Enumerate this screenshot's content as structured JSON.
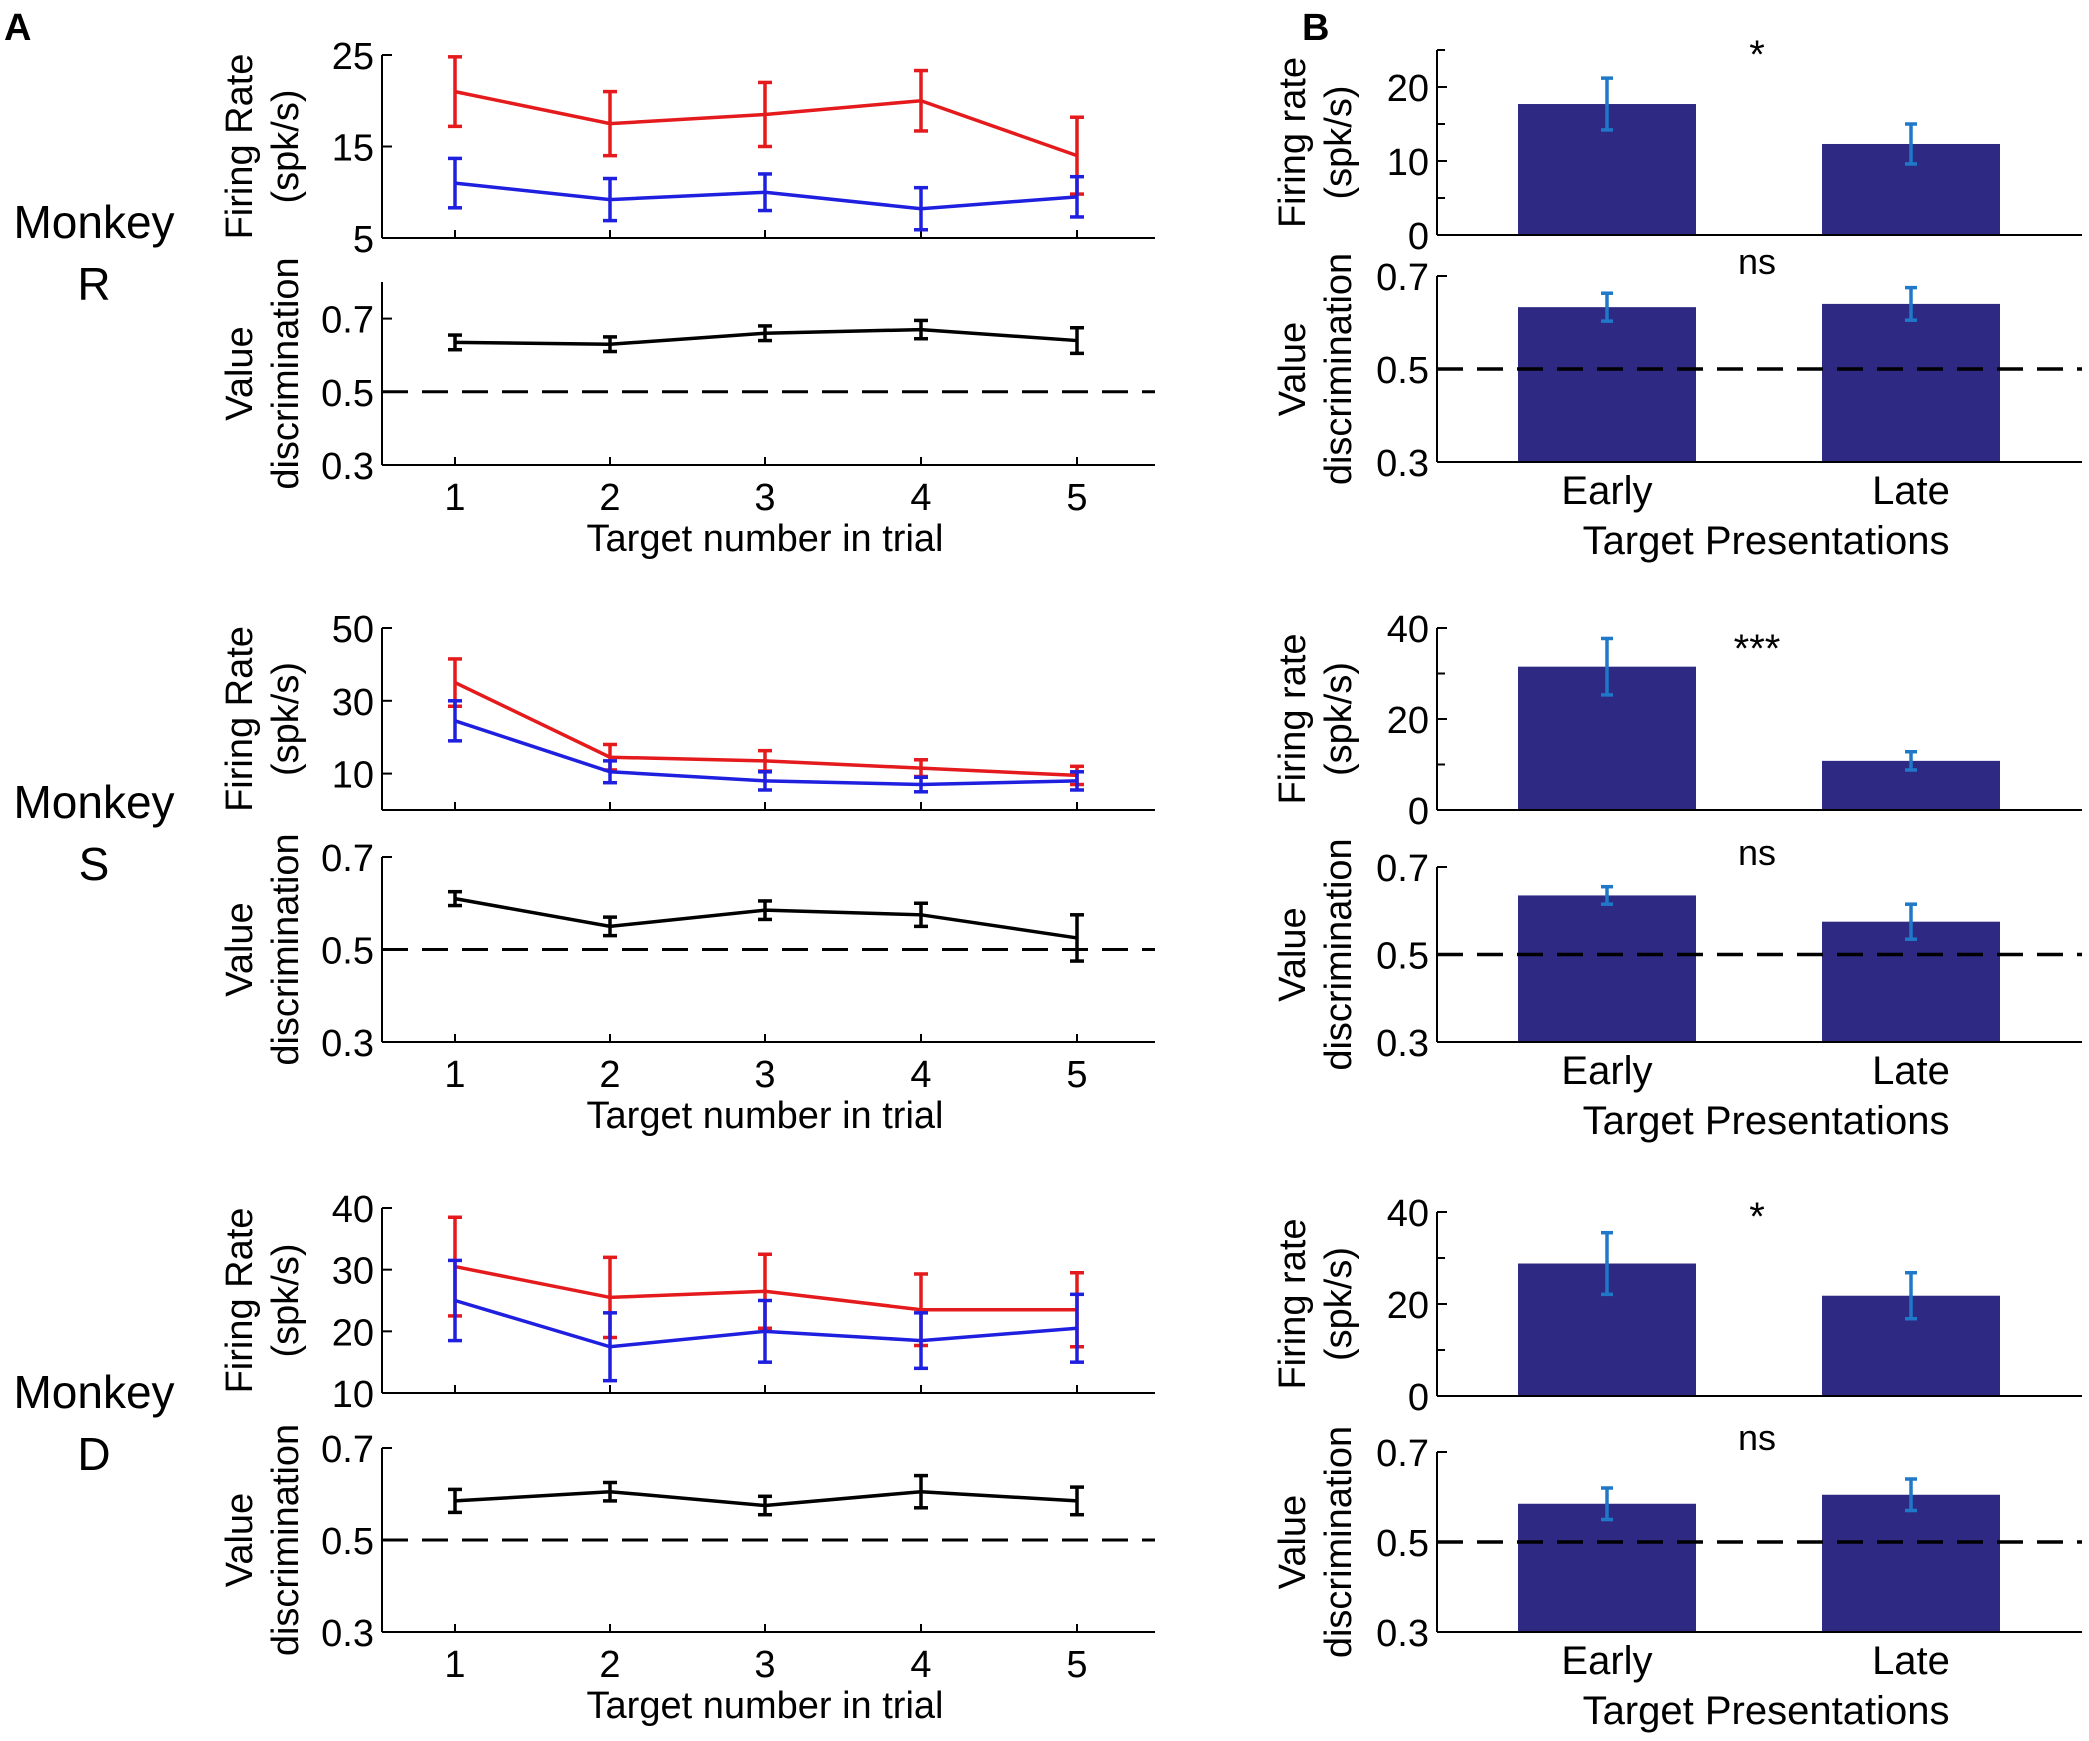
{
  "figure": {
    "panel_labels": [
      "A",
      "B"
    ],
    "monkeys": [
      {
        "label_line1": "Monkey",
        "label_line2": "R"
      },
      {
        "label_line1": "Monkey",
        "label_line2": "S"
      },
      {
        "label_line1": "Monkey",
        "label_line2": "D"
      }
    ],
    "common": {
      "fr_ylabel_a": [
        "Firing Rate",
        "(spk/s)"
      ],
      "fr_ylabel_b": [
        "Firing rate",
        "(spk/s)"
      ],
      "vd_ylabel": [
        "Value",
        "discrimination"
      ],
      "xlabel_a": "Target number in trial",
      "xlabel_b": "Target Presentations",
      "colors": {
        "red": "#e41a1c",
        "blue": "#1f1fe0",
        "black": "#000000",
        "bar": "#2e2a83",
        "bar_err": "#1f78c8"
      }
    }
  },
  "chart_data": [
    {
      "id": "R-A-fr",
      "type": "line",
      "monkey": "R",
      "panel": "A",
      "ylabel": "Firing Rate (spk/s)",
      "ylim": [
        5,
        25
      ],
      "yticks": [
        5,
        15,
        25
      ],
      "x": [
        1,
        2,
        3,
        4,
        5
      ],
      "series": [
        {
          "name": "red",
          "color": "#e41a1c",
          "values": [
            21,
            17.5,
            18.5,
            20,
            14
          ],
          "errors": [
            3.8,
            3.5,
            3.5,
            3.3,
            4.2
          ]
        },
        {
          "name": "blue",
          "color": "#1f1fe0",
          "values": [
            11,
            9.2,
            10,
            8.2,
            9.5
          ],
          "errors": [
            2.7,
            2.3,
            2.0,
            2.3,
            2.2
          ]
        }
      ]
    },
    {
      "id": "R-A-vd",
      "type": "line",
      "monkey": "R",
      "panel": "A",
      "ylabel": "Value discrimination",
      "ylim": [
        0.3,
        0.8
      ],
      "yticks": [
        0.3,
        0.5,
        0.7
      ],
      "xlabel": "Target number in trial",
      "x": [
        1,
        2,
        3,
        4,
        5
      ],
      "xticks": [
        "1",
        "2",
        "3",
        "4",
        "5"
      ],
      "series": [
        {
          "name": "black",
          "color": "#000000",
          "values": [
            0.635,
            0.63,
            0.66,
            0.67,
            0.64
          ],
          "errors": [
            0.02,
            0.02,
            0.02,
            0.025,
            0.035
          ]
        }
      ],
      "reference_line": 0.5
    },
    {
      "id": "R-B-fr",
      "type": "bar",
      "monkey": "R",
      "panel": "B",
      "ylabel": "Firing rate (spk/s)",
      "ylim": [
        0,
        25
      ],
      "yticks": [
        0,
        10,
        20
      ],
      "categories": [
        "Early",
        "Late"
      ],
      "values": [
        17.7,
        12.3
      ],
      "errors": [
        3.5,
        2.7
      ],
      "significance": "*"
    },
    {
      "id": "R-B-vd",
      "type": "bar",
      "monkey": "R",
      "panel": "B",
      "ylabel": "Value discrimination",
      "ylim": [
        0.3,
        0.7
      ],
      "yticks": [
        0.3,
        0.5,
        0.7
      ],
      "xlabel": "Target Presentations",
      "categories": [
        "Early",
        "Late"
      ],
      "values": [
        0.633,
        0.64
      ],
      "errors": [
        0.03,
        0.035
      ],
      "significance": "ns",
      "reference_line": 0.5
    },
    {
      "id": "S-A-fr",
      "type": "line",
      "monkey": "S",
      "panel": "A",
      "ylabel": "Firing Rate (spk/s)",
      "ylim": [
        0,
        50
      ],
      "yticks": [
        10,
        30,
        50
      ],
      "x": [
        1,
        2,
        3,
        4,
        5
      ],
      "series": [
        {
          "name": "red",
          "color": "#e41a1c",
          "values": [
            35,
            14.5,
            13.5,
            11.5,
            9.5
          ],
          "errors": [
            6.5,
            3.5,
            2.8,
            2.3,
            2.5
          ]
        },
        {
          "name": "blue",
          "color": "#1f1fe0",
          "values": [
            24.5,
            10.5,
            8,
            7,
            8
          ],
          "errors": [
            5.5,
            3,
            2.5,
            2,
            2.5
          ]
        }
      ]
    },
    {
      "id": "S-A-vd",
      "type": "line",
      "monkey": "S",
      "panel": "A",
      "ylabel": "Value discrimination",
      "ylim": [
        0.3,
        0.7
      ],
      "yticks": [
        0.3,
        0.5,
        0.7
      ],
      "xlabel": "Target number in trial",
      "x": [
        1,
        2,
        3,
        4,
        5
      ],
      "xticks": [
        "1",
        "2",
        "3",
        "4",
        "5"
      ],
      "series": [
        {
          "name": "black",
          "color": "#000000",
          "values": [
            0.61,
            0.55,
            0.585,
            0.575,
            0.525
          ],
          "errors": [
            0.015,
            0.02,
            0.02,
            0.025,
            0.05
          ]
        }
      ],
      "reference_line": 0.5
    },
    {
      "id": "S-B-fr",
      "type": "bar",
      "monkey": "S",
      "panel": "B",
      "ylabel": "Firing rate (spk/s)",
      "ylim": [
        0,
        40
      ],
      "yticks": [
        0,
        20,
        40
      ],
      "categories": [
        "Early",
        "Late"
      ],
      "values": [
        31.5,
        10.8
      ],
      "errors": [
        6.2,
        2
      ],
      "significance": "***"
    },
    {
      "id": "S-B-vd",
      "type": "bar",
      "monkey": "S",
      "panel": "B",
      "ylabel": "Value discrimination",
      "ylim": [
        0.3,
        0.7
      ],
      "yticks": [
        0.3,
        0.5,
        0.7
      ],
      "xlabel": "Target Presentations",
      "categories": [
        "Early",
        "Late"
      ],
      "values": [
        0.635,
        0.575
      ],
      "errors": [
        0.02,
        0.04
      ],
      "significance": "ns",
      "reference_line": 0.5
    },
    {
      "id": "D-A-fr",
      "type": "line",
      "monkey": "D",
      "panel": "A",
      "ylabel": "Firing Rate (spk/s)",
      "ylim": [
        10,
        40
      ],
      "yticks": [
        10,
        20,
        30,
        40
      ],
      "x": [
        1,
        2,
        3,
        4,
        5
      ],
      "series": [
        {
          "name": "red",
          "color": "#e41a1c",
          "values": [
            30.5,
            25.5,
            26.5,
            23.5,
            23.5
          ],
          "errors": [
            8,
            6.5,
            6,
            5.8,
            6
          ]
        },
        {
          "name": "blue",
          "color": "#1f1fe0",
          "values": [
            25,
            17.5,
            20,
            18.5,
            20.5
          ],
          "errors": [
            6.5,
            5.5,
            5,
            4.5,
            5.5
          ]
        }
      ]
    },
    {
      "id": "D-A-vd",
      "type": "line",
      "monkey": "D",
      "panel": "A",
      "ylabel": "Value discrimination",
      "ylim": [
        0.3,
        0.7
      ],
      "yticks": [
        0.3,
        0.5,
        0.7
      ],
      "xlabel": "Target number in trial",
      "x": [
        1,
        2,
        3,
        4,
        5
      ],
      "xticks": [
        "1",
        "2",
        "3",
        "4",
        "5"
      ],
      "series": [
        {
          "name": "black",
          "color": "#000000",
          "values": [
            0.585,
            0.605,
            0.575,
            0.605,
            0.585
          ],
          "errors": [
            0.025,
            0.02,
            0.02,
            0.035,
            0.03
          ]
        }
      ],
      "reference_line": 0.5
    },
    {
      "id": "D-B-fr",
      "type": "bar",
      "monkey": "D",
      "panel": "B",
      "ylabel": "Firing rate (spk/s)",
      "ylim": [
        0,
        40
      ],
      "yticks": [
        0,
        20,
        40
      ],
      "categories": [
        "Early",
        "Late"
      ],
      "values": [
        28.8,
        21.8
      ],
      "errors": [
        6.7,
        5.0
      ],
      "significance": "*"
    },
    {
      "id": "D-B-vd",
      "type": "bar",
      "monkey": "D",
      "panel": "B",
      "ylabel": "Value discrimination",
      "ylim": [
        0.3,
        0.7
      ],
      "yticks": [
        0.3,
        0.5,
        0.7
      ],
      "xlabel": "Target Presentations",
      "categories": [
        "Early",
        "Late"
      ],
      "values": [
        0.585,
        0.605
      ],
      "errors": [
        0.035,
        0.035
      ],
      "significance": "ns",
      "reference_line": 0.5
    }
  ]
}
